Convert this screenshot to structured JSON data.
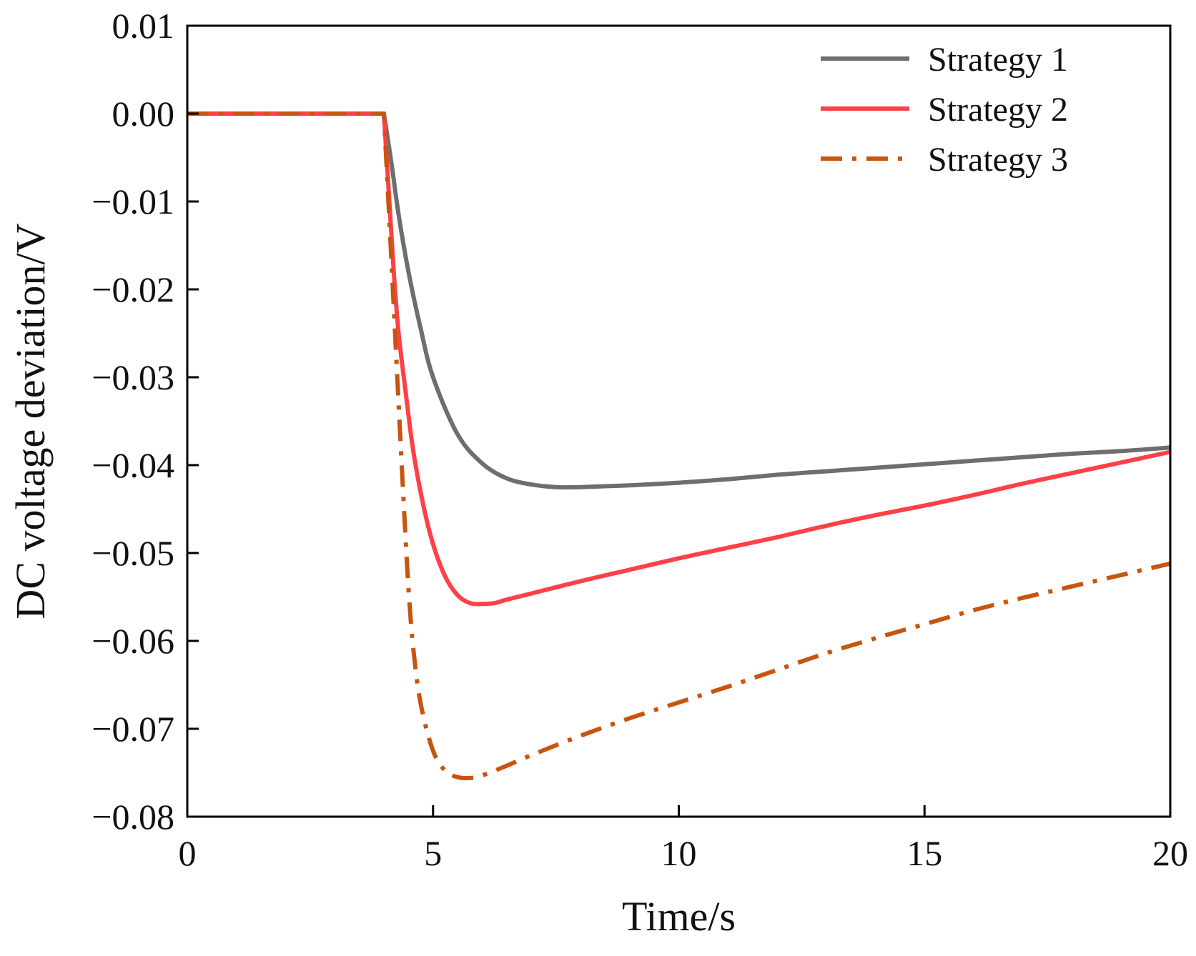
{
  "chart_data": {
    "type": "line",
    "xlabel": "Time/s",
    "ylabel": "DC voltage deviation/V",
    "xlim": [
      0,
      20
    ],
    "ylim": [
      -0.08,
      0.01
    ],
    "x_ticks": [
      "0",
      "5",
      "10",
      "15",
      "20"
    ],
    "y_ticks": [
      "0.01",
      "0.00",
      "−0.01",
      "−0.02",
      "−0.03",
      "−0.04",
      "−0.05",
      "−0.06",
      "−0.07",
      "−0.08"
    ],
    "grid": false,
    "legend_position": "top-right",
    "series": [
      {
        "name": "Strategy 1",
        "color": "#6e6e6e",
        "style": "solid",
        "x": [
          0,
          4.0,
          4.15,
          4.3,
          4.5,
          4.75,
          5.0,
          5.5,
          6.0,
          6.5,
          7.0,
          7.5,
          8.0,
          8.5,
          9.0,
          10.0,
          11.0,
          12.0,
          13.0,
          14.0,
          15.0,
          16.0,
          17.0,
          18.0,
          19.0,
          20.0
        ],
        "y": [
          0,
          0,
          -0.0055,
          -0.0115,
          -0.018,
          -0.0245,
          -0.03,
          -0.0365,
          -0.0398,
          -0.0415,
          -0.0422,
          -0.0425,
          -0.0425,
          -0.0424,
          -0.0423,
          -0.042,
          -0.0416,
          -0.0411,
          -0.0407,
          -0.0403,
          -0.0399,
          -0.0395,
          -0.0391,
          -0.0387,
          -0.0384,
          -0.038
        ]
      },
      {
        "name": "Strategy 2",
        "color": "#ff4047",
        "style": "solid",
        "x": [
          0,
          4.0,
          4.1,
          4.2,
          4.3,
          4.45,
          4.6,
          4.8,
          5.0,
          5.25,
          5.5,
          5.75,
          6.0,
          6.25,
          6.5,
          7.0,
          8.0,
          9.0,
          10.0,
          11.0,
          12.0,
          13.0,
          14.0,
          15.0,
          16.0,
          17.0,
          18.0,
          19.0,
          20.0
        ],
        "y": [
          0,
          0,
          -0.009,
          -0.018,
          -0.025,
          -0.032,
          -0.0385,
          -0.0445,
          -0.049,
          -0.0527,
          -0.0548,
          -0.0557,
          -0.0558,
          -0.0557,
          -0.0553,
          -0.0546,
          -0.0532,
          -0.0519,
          -0.0506,
          -0.0494,
          -0.0482,
          -0.0469,
          -0.0457,
          -0.0446,
          -0.0434,
          -0.0421,
          -0.0409,
          -0.0397,
          -0.0385
        ]
      },
      {
        "name": "Strategy 3",
        "color": "#c8550f",
        "style": "dashdot",
        "x": [
          0,
          4.0,
          4.1,
          4.2,
          4.3,
          4.4,
          4.5,
          4.6,
          4.75,
          5.0,
          5.25,
          5.5,
          5.75,
          6.0,
          6.5,
          7.0,
          8.0,
          9.0,
          10.0,
          11.0,
          12.0,
          13.0,
          14.0,
          15.0,
          16.0,
          17.0,
          18.0,
          19.0,
          20.0
        ],
        "y": [
          0,
          0,
          -0.011,
          -0.022,
          -0.033,
          -0.044,
          -0.054,
          -0.061,
          -0.0672,
          -0.0725,
          -0.0748,
          -0.0755,
          -0.0756,
          -0.0753,
          -0.0742,
          -0.073,
          -0.0708,
          -0.0688,
          -0.067,
          -0.0652,
          -0.0633,
          -0.0614,
          -0.0597,
          -0.0581,
          -0.0565,
          -0.0551,
          -0.0538,
          -0.0525,
          -0.0512
        ]
      }
    ]
  }
}
